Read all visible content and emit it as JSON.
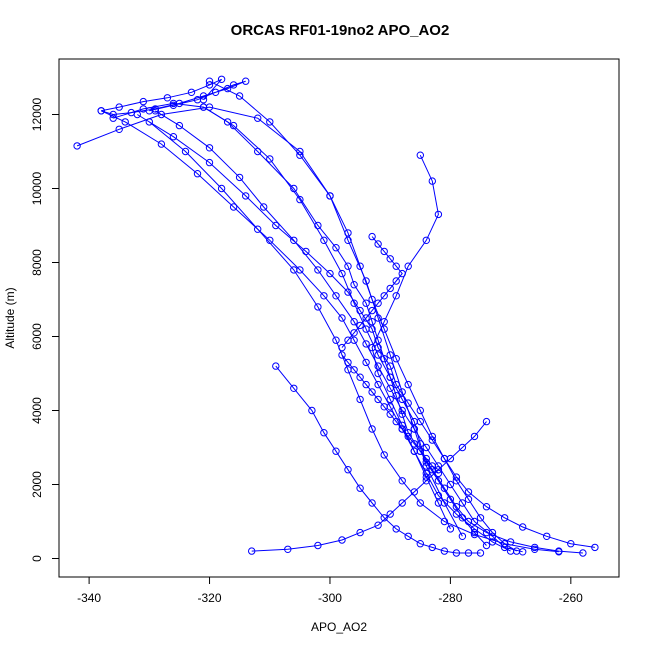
{
  "chart_data": {
    "type": "scatter",
    "title": "ORCAS RF01-19no2 APO_AO2",
    "xlabel": "APO_AO2",
    "ylabel": "Altitude (m)",
    "xlim": [
      -345,
      -252
    ],
    "ylim": [
      -500,
      13500
    ],
    "xticks": [
      -340,
      -320,
      -300,
      -280,
      -260
    ],
    "yticks": [
      0,
      2000,
      4000,
      6000,
      8000,
      10000,
      12000
    ],
    "point_style": "open-circle",
    "connected": true,
    "series_color": "#0000ff",
    "series": [
      {
        "x": [
          -330,
          -326,
          -322,
          -319,
          -316,
          -314,
          -317,
          -321,
          -325,
          -329,
          -333,
          -336,
          -338,
          -335,
          -331,
          -327,
          -323,
          -320,
          -318,
          -321
        ],
        "y": [
          12100,
          12250,
          12400,
          12600,
          12800,
          12900,
          12700,
          12500,
          12300,
          12150,
          12050,
          12000,
          12100,
          12200,
          12350,
          12450,
          12600,
          12800,
          12950,
          12400
        ]
      },
      {
        "x": [
          -321,
          -317,
          -312,
          -306,
          -302,
          -299,
          -297,
          -296,
          -294,
          -293,
          -292,
          -291,
          -290,
          -289,
          -288,
          -287,
          -285,
          -283,
          -281,
          -279,
          -277,
          -274,
          -270,
          -266,
          -262,
          -258
        ],
        "y": [
          12200,
          11800,
          11000,
          10000,
          9000,
          8400,
          7900,
          7400,
          6900,
          6400,
          5900,
          5400,
          4900,
          4400,
          3900,
          3400,
          2900,
          2400,
          1900,
          1400,
          1000,
          700,
          450,
          300,
          200,
          150
        ]
      },
      {
        "x": [
          -256,
          -260,
          -264,
          -268,
          -271,
          -274,
          -277,
          -279,
          -281,
          -283,
          -285,
          -287,
          -289,
          -290,
          -292,
          -293,
          -295,
          -297,
          -300,
          -304,
          -309,
          -314,
          -320,
          -326,
          -332
        ],
        "y": [
          300,
          400,
          600,
          850,
          1100,
          1400,
          1800,
          2200,
          2700,
          3200,
          3700,
          4200,
          4700,
          5200,
          5700,
          6200,
          6700,
          7200,
          7700,
          8300,
          9000,
          9800,
          10700,
          11400,
          12000
        ]
      },
      {
        "x": [
          -329,
          -325,
          -320,
          -315,
          -311,
          -306,
          -302,
          -299,
          -296,
          -294,
          -292,
          -290,
          -288,
          -286,
          -284,
          -282,
          -280,
          -278,
          -276,
          -273,
          -271,
          -268
        ],
        "y": [
          12100,
          11700,
          11100,
          10300,
          9500,
          8600,
          7800,
          7100,
          6400,
          5800,
          5200,
          4600,
          4000,
          3500,
          3000,
          2500,
          2000,
          1500,
          1000,
          600,
          300,
          180
        ]
      },
      {
        "x": [
          -270,
          -273,
          -276,
          -279,
          -282,
          -284,
          -286,
          -288,
          -290,
          -292,
          -294,
          -296,
          -298,
          -301,
          -305,
          -310,
          -316,
          -322,
          -328,
          -334,
          -338
        ],
        "y": [
          200,
          450,
          800,
          1200,
          1700,
          2300,
          2900,
          3500,
          4100,
          4700,
          5300,
          5900,
          6500,
          7100,
          7800,
          8600,
          9500,
          10400,
          11200,
          11800,
          12100
        ]
      },
      {
        "x": [
          -336,
          -331,
          -326,
          -321,
          -316,
          -310,
          -305,
          -301,
          -298,
          -296,
          -294,
          -292,
          -290,
          -288,
          -286,
          -285,
          -284,
          -282,
          -280,
          -278,
          -276,
          -274
        ],
        "y": [
          11900,
          12150,
          12300,
          12200,
          11700,
          10800,
          9700,
          8600,
          7700,
          6900,
          6200,
          5500,
          4900,
          4300,
          3700,
          3100,
          2600,
          2100,
          1600,
          1100,
          700,
          350
        ]
      },
      {
        "x": [
          -262,
          -266,
          -271,
          -276,
          -281,
          -285,
          -288,
          -291,
          -293,
          -295,
          -297,
          -299,
          -302,
          -306,
          -312,
          -318,
          -324,
          -330
        ],
        "y": [
          180,
          250,
          400,
          650,
          1000,
          1500,
          2100,
          2800,
          3500,
          4300,
          5100,
          5900,
          6800,
          7800,
          8900,
          10000,
          11000,
          11800
        ]
      },
      {
        "x": [
          -320,
          -315,
          -310,
          -305,
          -300,
          -297,
          -295,
          -293,
          -291,
          -289,
          -287,
          -285,
          -283,
          -281,
          -279,
          -277,
          -275,
          -273,
          -271,
          -269
        ],
        "y": [
          12900,
          12500,
          11800,
          10900,
          9800,
          8800,
          7900,
          7000,
          6200,
          5400,
          4700,
          4000,
          3300,
          2700,
          2100,
          1600,
          1100,
          700,
          400,
          200
        ]
      },
      {
        "x": [
          -342,
          -335,
          -328,
          -320,
          -312,
          -305,
          -300,
          -297,
          -294,
          -292,
          -290,
          -288,
          -286,
          -284,
          -281,
          -278
        ],
        "y": [
          11150,
          11600,
          12000,
          12200,
          11900,
          11000,
          9800,
          8600,
          7500,
          6500,
          5500,
          4500,
          3500,
          2500,
          1500,
          600
        ]
      },
      {
        "x": [
          -285,
          -283,
          -282,
          -284,
          -287,
          -289,
          -291,
          -293,
          -292,
          -290,
          -288,
          -286,
          -284,
          -282,
          -280
        ],
        "y": [
          10900,
          10200,
          9300,
          8600,
          7900,
          7100,
          6400,
          5700,
          5000,
          4300,
          3600,
          2900,
          2200,
          1500,
          800
        ]
      },
      {
        "x": [
          -309,
          -306,
          -303,
          -301,
          -299,
          -297,
          -295,
          -293,
          -291,
          -289,
          -287,
          -285,
          -283,
          -281,
          -279,
          -277,
          -275
        ],
        "y": [
          5200,
          4600,
          4000,
          3400,
          2900,
          2400,
          1900,
          1500,
          1100,
          800,
          600,
          400,
          300,
          200,
          150,
          150,
          150
        ]
      },
      {
        "x": [
          -274,
          -276,
          -278,
          -280,
          -282,
          -284,
          -286,
          -288,
          -290,
          -292,
          -295,
          -298,
          -302,
          -307,
          -313
        ],
        "y": [
          3700,
          3300,
          3000,
          2700,
          2400,
          2100,
          1800,
          1500,
          1200,
          900,
          700,
          500,
          350,
          250,
          200
        ]
      },
      {
        "x": [
          -293,
          -292,
          -291,
          -290,
          -289,
          -288,
          -289,
          -290,
          -291,
          -292,
          -293,
          -294,
          -295,
          -296,
          -297,
          -298
        ],
        "y": [
          8700,
          8500,
          8300,
          8100,
          7900,
          7700,
          7500,
          7300,
          7100,
          6900,
          6700,
          6500,
          6300,
          6100,
          5900,
          5700
        ]
      },
      {
        "x": [
          -298,
          -297,
          -296,
          -295,
          -294,
          -293,
          -292,
          -291,
          -290,
          -289,
          -288,
          -287,
          -286,
          -285,
          -284,
          -283,
          -282
        ],
        "y": [
          5500,
          5300,
          5100,
          4900,
          4700,
          4500,
          4300,
          4100,
          3900,
          3700,
          3500,
          3300,
          3100,
          2900,
          2700,
          2500,
          2300
        ]
      }
    ]
  }
}
